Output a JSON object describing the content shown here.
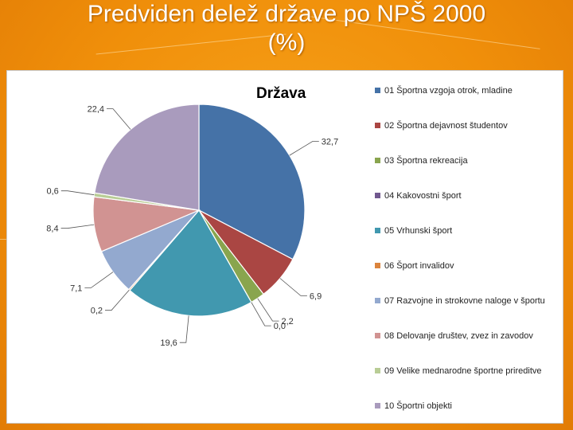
{
  "slide": {
    "title_line1": "Predviden delež države po NPŠ 2000",
    "title_line2": "(%)"
  },
  "chart_data": {
    "type": "pie",
    "title": "Država",
    "legend_position": "right",
    "start_angle_deg": 0,
    "direction": "clockwise",
    "categories": [
      "01 Športna vzgoja otrok, mladine",
      "02 Športna dejavnost študentov",
      "03 Športna rekreacija",
      "04 Kakovostni šport",
      "05 Vrhunski šport",
      "06 Šport invalidov",
      "07 Razvojne in strokovne naloge v športu",
      "08 Delovanje društev, zvez in zavodov",
      "09 Velike mednarodne športne prireditve",
      "10 Športni objekti"
    ],
    "values": [
      32.7,
      6.9,
      2.2,
      0.0,
      19.6,
      0.2,
      7.1,
      8.4,
      0.6,
      22.4
    ],
    "data_labels": [
      "32,7",
      "6,9",
      "2,2",
      "0,0",
      "19,6",
      "0,2",
      "7,1",
      "8,4",
      "0,6",
      "22,4"
    ],
    "colors": [
      "#4572a7",
      "#aa4643",
      "#89a54e",
      "#71588f",
      "#4198af",
      "#db843d",
      "#93a9cf",
      "#d19392",
      "#b9cd96",
      "#a99bbd"
    ]
  }
}
